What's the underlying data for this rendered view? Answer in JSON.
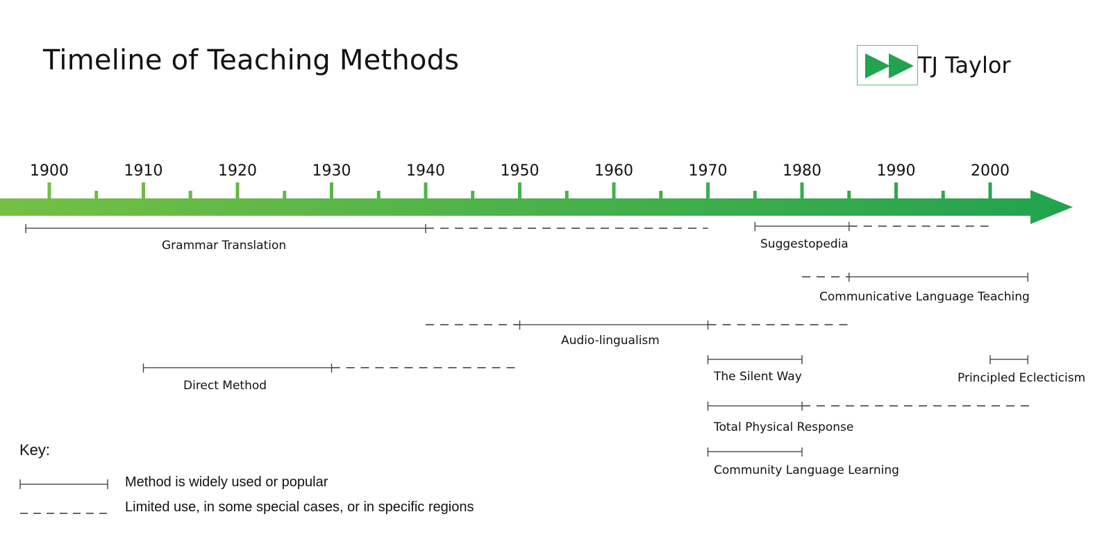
{
  "header": {
    "title": "Timeline of Teaching Methods",
    "logo_text": "TJ Taylor",
    "logo_icon": "fast-forward-icon"
  },
  "colors": {
    "arrow_start": "#74c044",
    "arrow_end": "#21a34f",
    "line": "#555555",
    "logo_border": "#5fbf6a"
  },
  "chart_data": {
    "type": "timeline",
    "title": "Timeline of Teaching Methods",
    "axis": {
      "start_year": 1900,
      "end_year": 2000,
      "major_ticks": [
        1900,
        1910,
        1920,
        1930,
        1940,
        1950,
        1960,
        1970,
        1980,
        1990,
        2000
      ],
      "minor_ticks": [
        1905,
        1915,
        1925,
        1935,
        1945,
        1955,
        1965,
        1975,
        1985,
        1995
      ]
    },
    "methods": [
      {
        "name": "Grammar Translation",
        "popular": [
          [
            1897.5,
            1940
          ]
        ],
        "limited": [
          [
            1940,
            1970
          ]
        ]
      },
      {
        "name": "Suggestopedia",
        "popular": [
          [
            1975,
            1985
          ]
        ],
        "limited": [
          [
            1985,
            2000
          ]
        ]
      },
      {
        "name": "Communicative Language Teaching",
        "popular": [
          [
            1985,
            2004
          ]
        ],
        "limited": [
          [
            1980,
            1985
          ]
        ]
      },
      {
        "name": "Audio-lingualism",
        "popular": [
          [
            1950,
            1970
          ]
        ],
        "limited": [
          [
            1940,
            1950
          ],
          [
            1970,
            1985
          ]
        ]
      },
      {
        "name": "Direct Method",
        "popular": [
          [
            1910,
            1930
          ]
        ],
        "limited": [
          [
            1930,
            1950
          ]
        ]
      },
      {
        "name": "The Silent Way",
        "popular": [
          [
            1970,
            1980
          ]
        ],
        "limited": []
      },
      {
        "name": "Principled Eclecticism",
        "popular": [
          [
            2000,
            2004
          ]
        ],
        "limited": []
      },
      {
        "name": "Total Physical Response",
        "popular": [
          [
            1970,
            1980
          ]
        ],
        "limited": [
          [
            1980,
            2004.5
          ]
        ]
      },
      {
        "name": "Community Language Learning",
        "popular": [
          [
            1970,
            1980
          ]
        ],
        "limited": []
      }
    ],
    "legend": [
      {
        "style": "solid",
        "label": "Method is widely used or popular"
      },
      {
        "style": "dashed",
        "label": "Limited use, in some special cases, or in specific regions"
      }
    ]
  },
  "key": {
    "title": "Key:",
    "solid_label": "Method is widely used or popular",
    "dashed_label": "Limited use, in some special cases, or in specific regions"
  }
}
